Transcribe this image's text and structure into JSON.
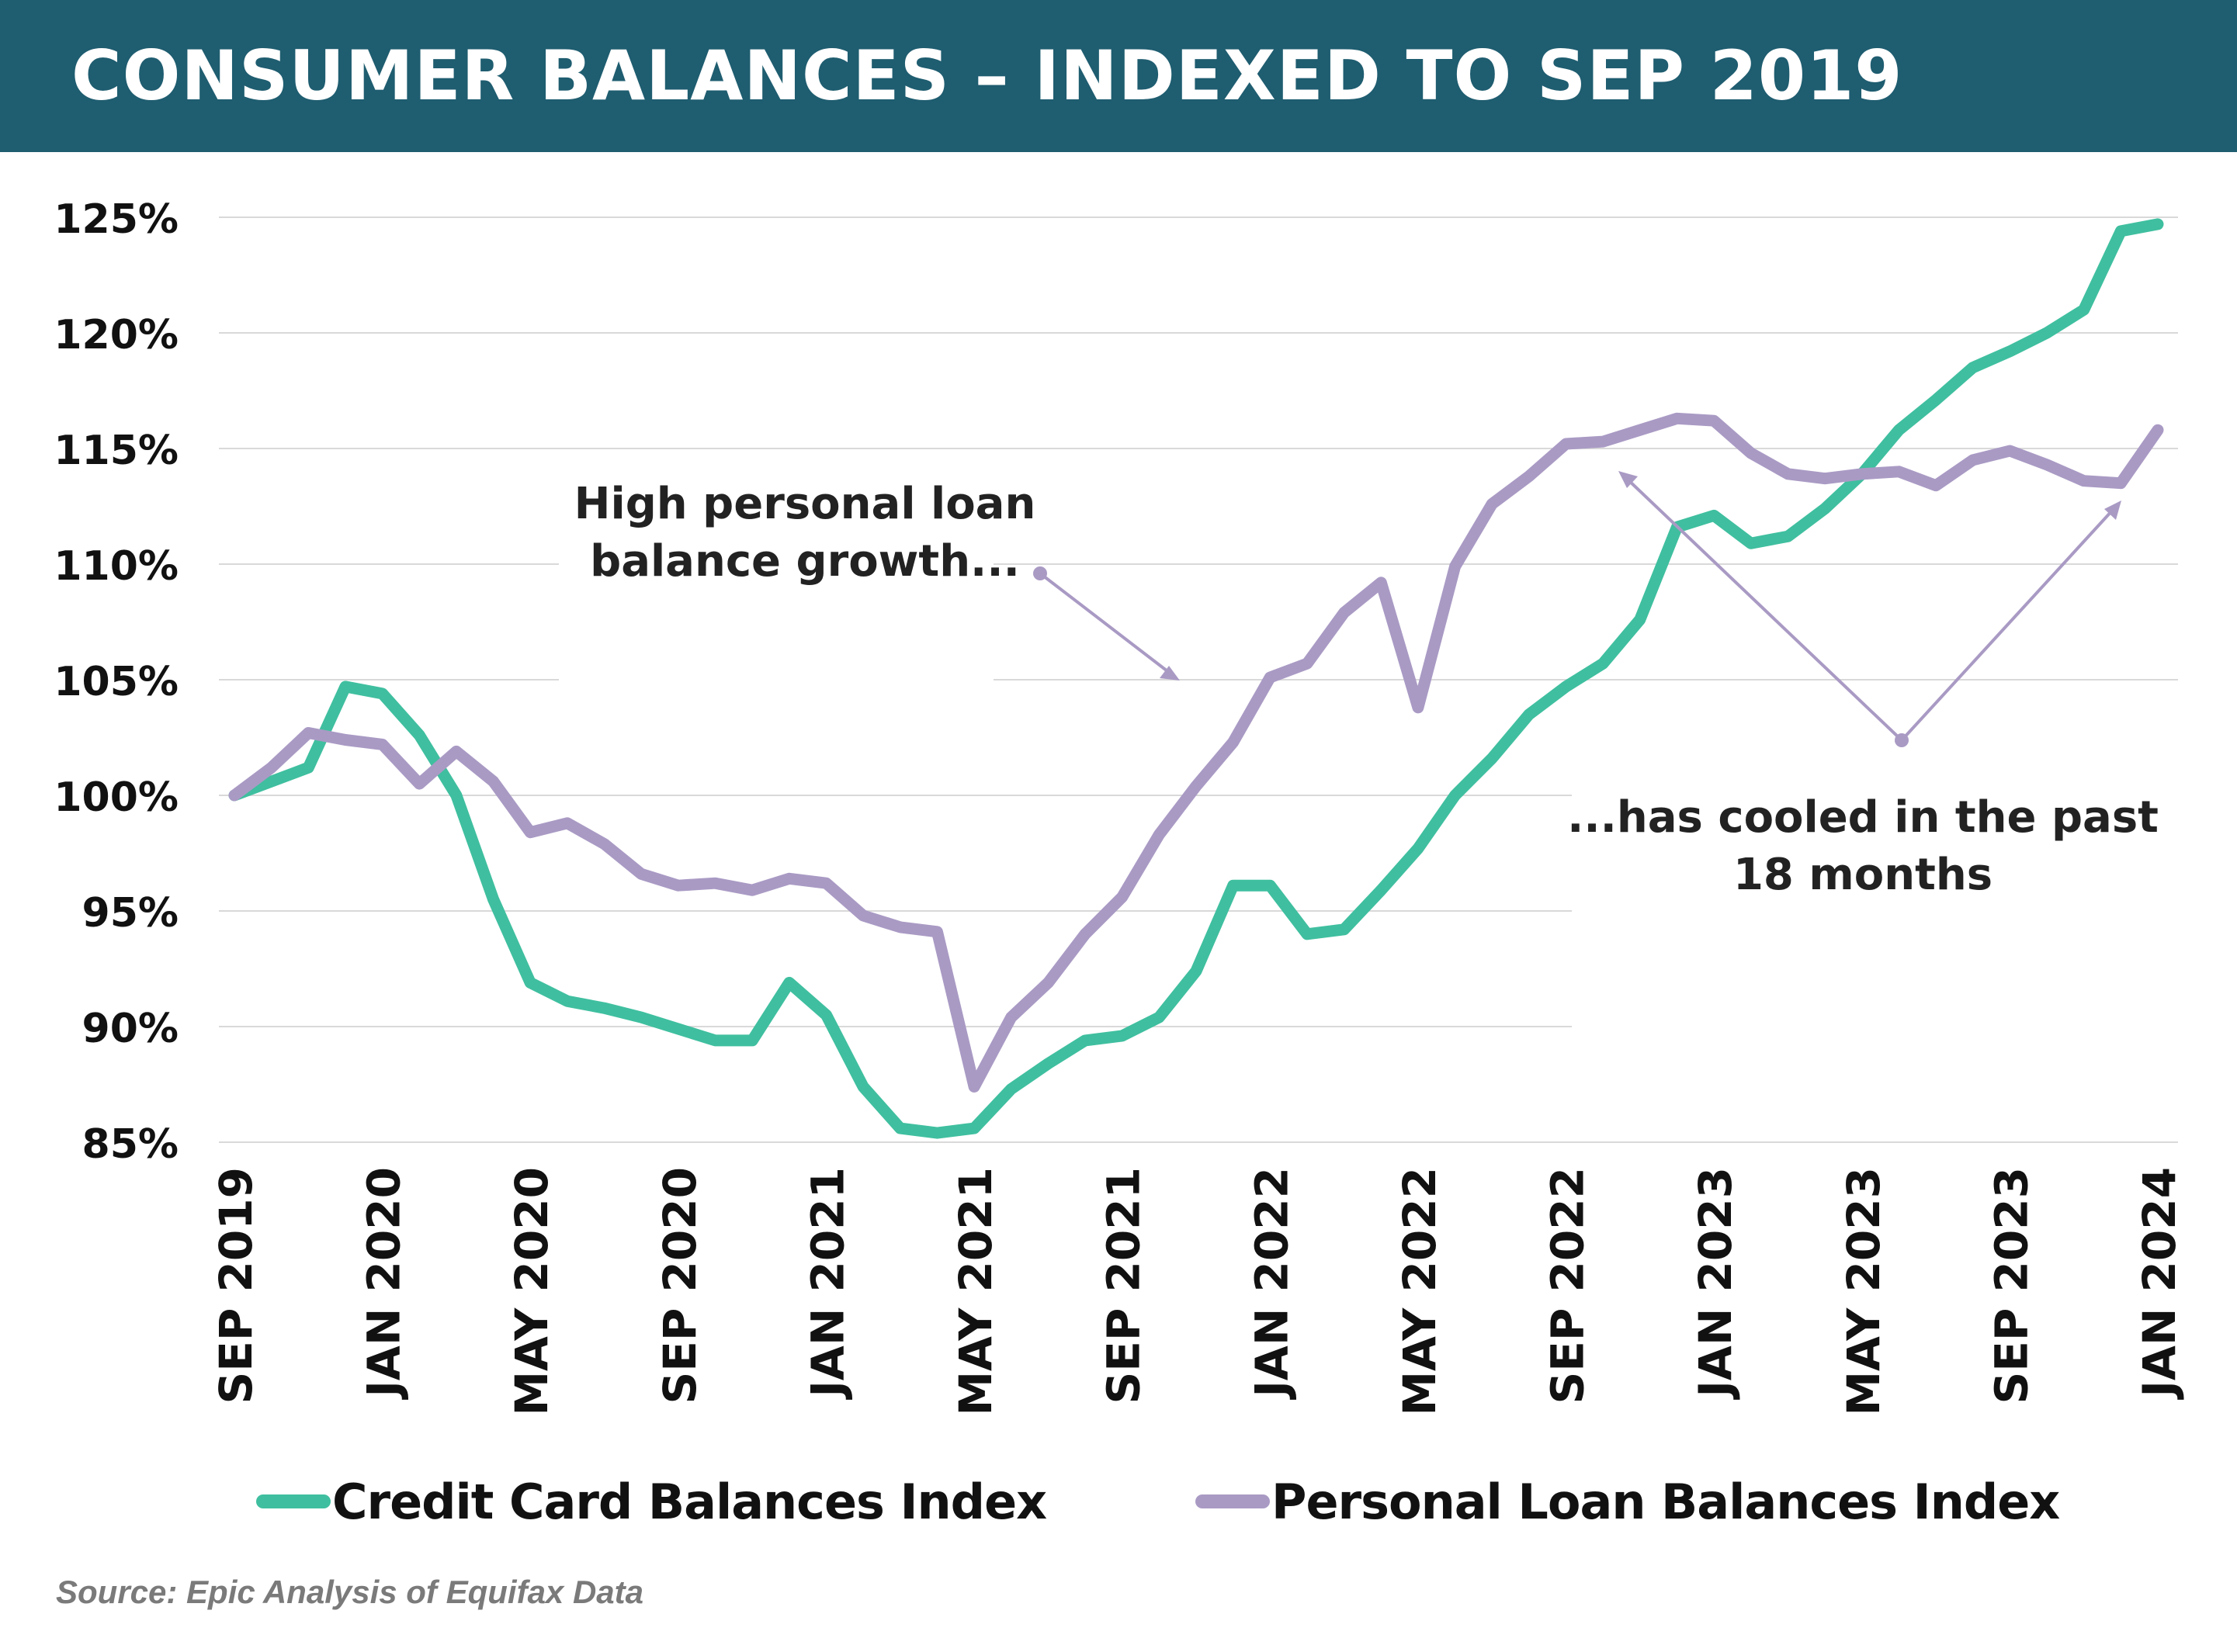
{
  "header": {
    "title": "CONSUMER BALANCES – INDEXED TO SEP 2019"
  },
  "colors": {
    "banner": "#1f5d70",
    "credit_card": "#3fbf9f",
    "personal_loan": "#a99ac4",
    "grid": "#d9d9d9"
  },
  "chart_data": {
    "type": "line",
    "title": "CONSUMER BALANCES – INDEXED TO SEP 2019",
    "xlabel": "",
    "ylabel": "",
    "ylim": [
      85,
      125
    ],
    "yticks": [
      85,
      90,
      95,
      100,
      105,
      110,
      115,
      120,
      125
    ],
    "ytick_labels": [
      "85%",
      "90%",
      "95%",
      "100%",
      "105%",
      "110%",
      "115%",
      "120%",
      "125%"
    ],
    "x_tick_labels": [
      "SEP 2019",
      "JAN 2020",
      "MAY 2020",
      "SEP 2020",
      "JAN 2021",
      "MAY 2021",
      "SEP 2021",
      "JAN 2022",
      "MAY 2022",
      "SEP 2022",
      "JAN 2023",
      "MAY 2023",
      "SEP 2023",
      "JAN 2024"
    ],
    "x_tick_month_index": [
      0,
      4,
      8,
      12,
      16,
      20,
      24,
      28,
      32,
      36,
      40,
      44,
      48,
      52
    ],
    "grid": true,
    "legend_position": "bottom",
    "series": [
      {
        "name": "Credit Card Balances Index",
        "color": "#3fbf9f",
        "values": [
          100,
          100.6,
          101.2,
          104.7,
          104.4,
          102.6,
          100,
          95.5,
          91.9,
          91.1,
          90.8,
          90.4,
          89.9,
          89.4,
          89.4,
          91.9,
          90.5,
          87.4,
          85.6,
          85.4,
          85.6,
          87.3,
          88.4,
          89.4,
          89.6,
          90.4,
          92.4,
          96.1,
          96.1,
          94,
          94.2,
          95.9,
          97.7,
          100,
          101.6,
          103.5,
          104.7,
          105.7,
          107.6,
          111.6,
          112.1,
          110.9,
          111.2,
          112.4,
          113.9,
          115.8,
          117.1,
          118.5,
          119.2,
          120,
          121,
          124.4,
          124.7
        ]
      },
      {
        "name": "Personal Loan Balances Index",
        "color": "#a99ac4",
        "values": [
          100,
          101.2,
          102.7,
          102.4,
          102.2,
          100.5,
          101.9,
          100.6,
          98.4,
          98.8,
          97.9,
          96.6,
          96.1,
          96.2,
          95.9,
          96.4,
          96.2,
          94.8,
          94.3,
          94.1,
          87.4,
          90.4,
          91.9,
          94,
          95.6,
          98.3,
          100.4,
          102.3,
          105.1,
          105.7,
          107.9,
          109.2,
          103.8,
          109.9,
          112.6,
          113.8,
          115.2,
          115.3,
          115.8,
          116.3,
          116.2,
          114.8,
          113.9,
          113.7,
          113.9,
          114,
          113.4,
          114.5,
          114.9,
          114.3,
          113.6,
          113.5,
          115.8
        ]
      }
    ],
    "annotations": [
      {
        "text_lines": [
          "High personal loan",
          "balance growth..."
        ]
      },
      {
        "text_lines": [
          "...has cooled in the past",
          "18 months"
        ]
      }
    ]
  },
  "legend": {
    "credit_card_label": "Credit Card Balances Index",
    "personal_loan_label": "Personal Loan Balances Index"
  },
  "footer": {
    "source": "Source: Epic Analysis of Equifax Data"
  }
}
